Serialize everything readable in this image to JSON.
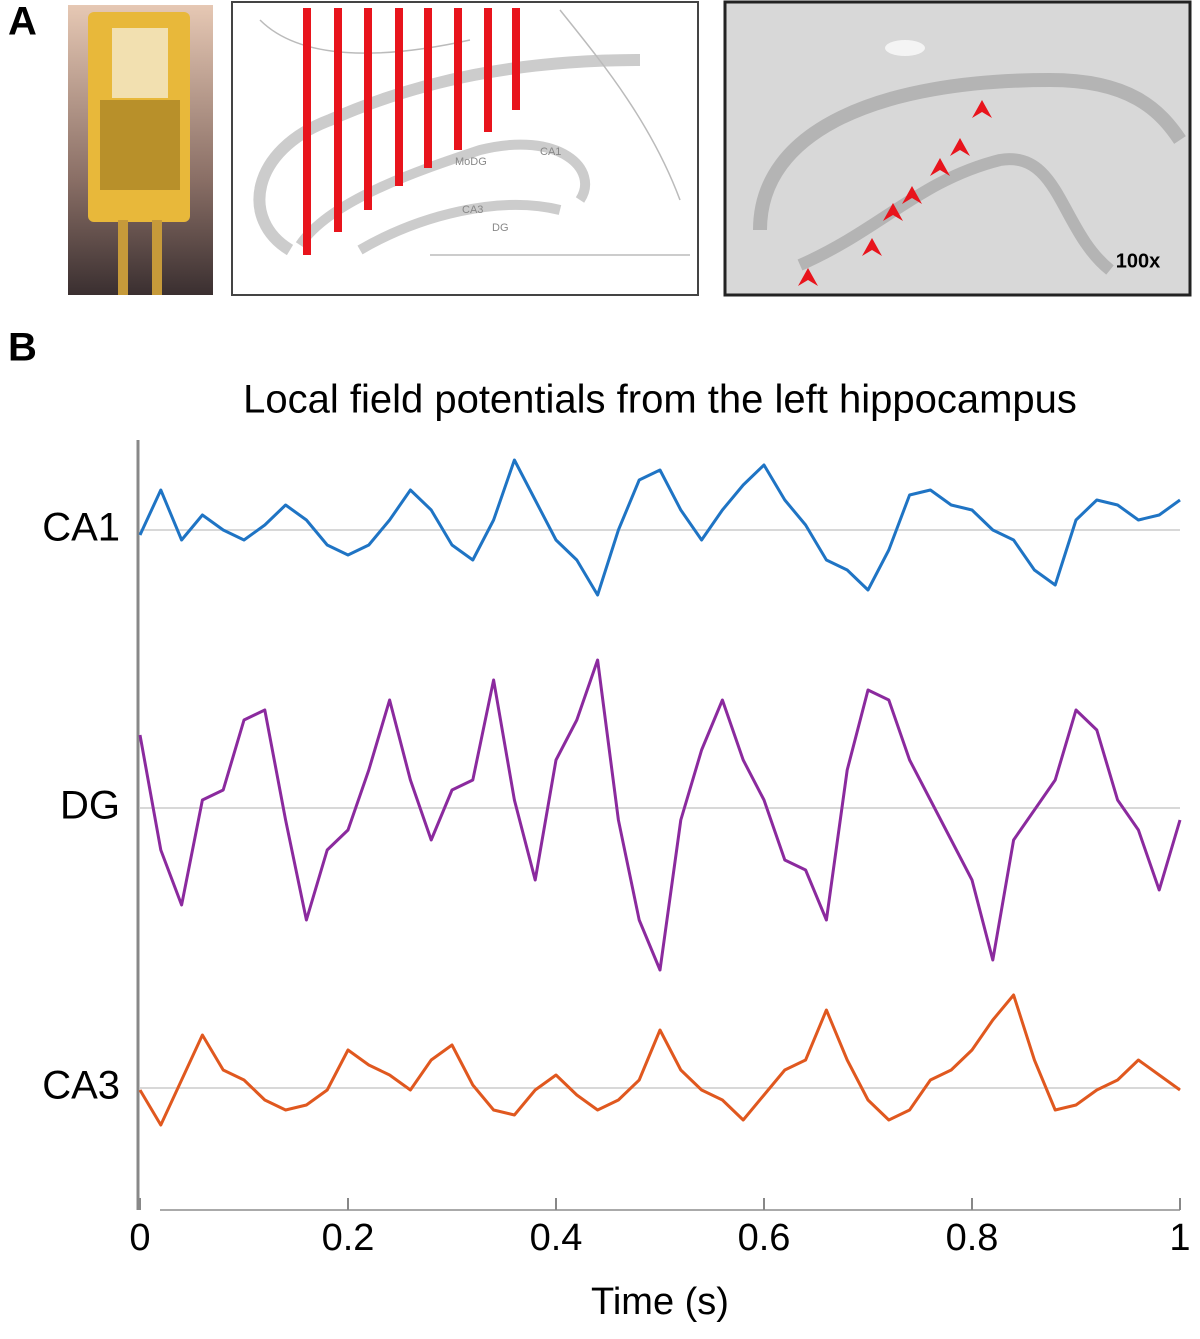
{
  "panel_labels": [
    "A",
    "B"
  ],
  "panel_a": {
    "magnification": "100x",
    "atlas_labels": [
      "CA1",
      "MoDG",
      "CA3",
      "DG"
    ]
  },
  "chart_data": {
    "type": "line",
    "title": "Local field potentials from the left hippocampus",
    "xlabel": "Time (s)",
    "x": [
      0,
      0.02,
      0.04,
      0.06,
      0.08,
      0.1,
      0.12,
      0.14,
      0.16,
      0.18,
      0.2,
      0.22,
      0.24,
      0.26,
      0.28,
      0.3,
      0.32,
      0.34,
      0.36,
      0.38,
      0.4,
      0.42,
      0.44,
      0.46,
      0.48,
      0.5,
      0.52,
      0.54,
      0.56,
      0.58,
      0.6,
      0.62,
      0.64,
      0.66,
      0.68,
      0.7,
      0.72,
      0.74,
      0.76,
      0.78,
      0.8,
      0.82,
      0.84,
      0.86,
      0.88,
      0.9,
      0.92,
      0.94,
      0.96,
      0.98,
      1
    ],
    "series": [
      {
        "color": "#1f74c4",
        "values": [
          66.5,
          71,
          66,
          68.5,
          67,
          66,
          67.5,
          69.5,
          68,
          65.5,
          64.5,
          65.5,
          68,
          71,
          69,
          65.5,
          64,
          68,
          74,
          70,
          66,
          64,
          60.5,
          67,
          72,
          73,
          69,
          66,
          69,
          71.5,
          73.5,
          70,
          67.5,
          64,
          63,
          61,
          65,
          70.5,
          71,
          69.5,
          69,
          67,
          66,
          63,
          61.5,
          68,
          70,
          69.5,
          68,
          68.5,
          70
        ]
      },
      {
        "color": "#8b2a9e",
        "values": [
          46.5,
          35,
          29.5,
          40,
          41,
          48,
          49,
          38,
          28,
          35,
          37,
          43,
          50,
          42,
          36,
          41,
          42,
          52,
          40,
          32,
          44,
          48,
          54,
          38,
          28,
          23,
          38,
          45,
          50,
          44,
          40,
          34,
          33,
          28,
          43,
          51,
          50,
          44,
          40,
          36,
          32,
          24,
          36,
          39,
          42,
          49,
          47,
          40,
          37,
          31,
          38
        ]
      },
      {
        "color": "#e0581f",
        "values": [
          11,
          7.5,
          12,
          16.5,
          13,
          12,
          10,
          9,
          9.5,
          11,
          15,
          13.5,
          12.5,
          11,
          14,
          15.5,
          11.5,
          9,
          8.5,
          11,
          12.5,
          10.5,
          9,
          10,
          12,
          17,
          13,
          11,
          10,
          8,
          10.5,
          13,
          14,
          19,
          14,
          10,
          8,
          9,
          12,
          13,
          15,
          18,
          20.5,
          14,
          9,
          9.5,
          11,
          12,
          14,
          12.5,
          11
        ]
      }
    ],
    "xlim": [
      0,
      1
    ],
    "xticks": [
      0,
      0.2,
      0.4,
      0.6,
      0.8,
      1
    ],
    "ylim": [
      0,
      76
    ],
    "yticks": [
      {
        "value": 11.2,
        "label": "CA3"
      },
      {
        "value": 39.2,
        "label": "DG"
      },
      {
        "value": 67,
        "label": "CA1"
      }
    ],
    "grid": true
  }
}
